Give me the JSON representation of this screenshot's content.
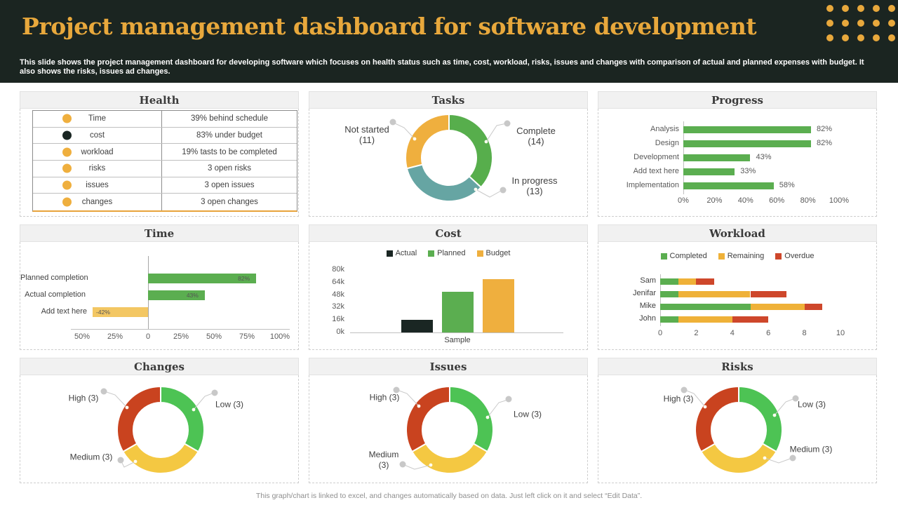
{
  "header": {
    "title": "Project management dashboard for software development",
    "subtitle": "This slide shows the project management dashboard for developing software which focuses on health status such as time, cost, workload, risks, issues and changes with comparison of actual and planned expenses with budget. It also shows the risks, issues ad changes.",
    "accent_color": "#E8A83C",
    "background_color": "#1B2521"
  },
  "footer": {
    "note": "This graph/chart is linked to excel, and changes automatically based on data. Just left click on it and select “Edit Data”."
  },
  "panels": [
    {
      "id": "health",
      "title": "Health"
    },
    {
      "id": "tasks",
      "title": "Tasks"
    },
    {
      "id": "progress",
      "title": "Progress"
    },
    {
      "id": "time",
      "title": "Time"
    },
    {
      "id": "cost",
      "title": "Cost"
    },
    {
      "id": "workload",
      "title": "Workload"
    },
    {
      "id": "changes",
      "title": "Changes"
    },
    {
      "id": "issues",
      "title": "Issues"
    },
    {
      "id": "risks",
      "title": "Risks"
    }
  ],
  "chart_data": [
    {
      "id": "health",
      "type": "table",
      "rows": [
        {
          "dot": "#EFAF3E",
          "label": "Time",
          "value": "39% behind schedule"
        },
        {
          "dot": "#1A2623",
          "label": "cost",
          "value": "83% under budget"
        },
        {
          "dot": "#EFAF3E",
          "label": "workload",
          "value": "19% tasts to be completed"
        },
        {
          "dot": "#EFAF3E",
          "label": "risks",
          "value": "3 open risks"
        },
        {
          "dot": "#EFAF3E",
          "label": "issues",
          "value": "3 open issues"
        },
        {
          "dot": "#EFAF3E",
          "label": "changes",
          "value": "3 open changes"
        }
      ]
    },
    {
      "id": "tasks",
      "type": "pie",
      "donut": true,
      "labels": [
        "Complete",
        "In progress",
        "Not started"
      ],
      "values": [
        14,
        13,
        11
      ],
      "colors": [
        "#57AE4C",
        "#66A5A3",
        "#EFAF3E"
      ],
      "display_labels": [
        "Complete\n(14)",
        "In progress\n(13)",
        "Not started\n(11)"
      ]
    },
    {
      "id": "progress",
      "type": "bar",
      "orientation": "horizontal",
      "categories": [
        "Analysis",
        "Design",
        "Development",
        "Add text here",
        "Implementation"
      ],
      "values": [
        82,
        82,
        43,
        33,
        58
      ],
      "value_labels": [
        "82%",
        "82%",
        "43%",
        "33%",
        "58%"
      ],
      "xticks": [
        "0%",
        "20%",
        "40%",
        "60%",
        "80%",
        "100%"
      ],
      "xlim": [
        0,
        100
      ],
      "color": "#5BAE50"
    },
    {
      "id": "time",
      "type": "bar",
      "orientation": "horizontal-diverging",
      "categories": [
        "Planned completion",
        "Actual completion",
        "Add text here"
      ],
      "values": [
        82,
        43,
        -42
      ],
      "value_labels": [
        "82%",
        "43%",
        "-42%"
      ],
      "colors": [
        "#5BAE50",
        "#5BAE50",
        "#F3C763"
      ],
      "xticks": [
        "50%",
        "25%",
        "0",
        "25%",
        "50%",
        "75%",
        "100%"
      ],
      "xtick_values": [
        -50,
        -25,
        0,
        25,
        50,
        75,
        100
      ],
      "xlim": [
        -50,
        100
      ]
    },
    {
      "id": "cost",
      "type": "bar",
      "orientation": "vertical",
      "categories": [
        "Sample"
      ],
      "xlabel": "Sample",
      "series": [
        {
          "name": "Actual",
          "value": 16000,
          "color": "#1A2623"
        },
        {
          "name": "Planned",
          "value": 52000,
          "color": "#5BAE50"
        },
        {
          "name": "Budget",
          "value": 68000,
          "color": "#EFAF3E"
        }
      ],
      "yticks": [
        "0k",
        "16k",
        "32k",
        "48k",
        "64k",
        "80k"
      ],
      "ytick_values": [
        0,
        16000,
        32000,
        48000,
        64000,
        80000
      ],
      "ylim": [
        0,
        80000
      ]
    },
    {
      "id": "workload",
      "type": "bar",
      "orientation": "horizontal-stacked",
      "categories": [
        "Sam",
        "Jenifar",
        "Mike",
        "John"
      ],
      "series": [
        {
          "name": "Completed",
          "color": "#5BAE50",
          "values": [
            1,
            1,
            5,
            1
          ]
        },
        {
          "name": "Remaining",
          "color": "#EFB138",
          "values": [
            1,
            4,
            3,
            3
          ]
        },
        {
          "name": "Overdue",
          "color": "#CE472B",
          "values": [
            1,
            2,
            1,
            2
          ]
        }
      ],
      "xticks": [
        "0",
        "2",
        "4",
        "6",
        "8",
        "10"
      ],
      "xtick_values": [
        0,
        2,
        4,
        6,
        8,
        10
      ],
      "xlim": [
        0,
        10
      ]
    },
    {
      "id": "changes",
      "type": "pie",
      "donut": true,
      "labels": [
        "Low",
        "Medium",
        "High"
      ],
      "values": [
        3,
        3,
        3
      ],
      "colors": [
        "#4DC354",
        "#F4C842",
        "#C9431F"
      ],
      "display_labels": [
        "Low (3)",
        "Medium (3)",
        "High (3)"
      ]
    },
    {
      "id": "issues",
      "type": "pie",
      "donut": true,
      "labels": [
        "Low",
        "Medium",
        "High"
      ],
      "values": [
        3,
        3,
        3
      ],
      "colors": [
        "#4DC354",
        "#F4C842",
        "#C9431F"
      ],
      "display_labels": [
        "Low (3)",
        "Medium\n(3)",
        "High (3)"
      ]
    },
    {
      "id": "risks",
      "type": "pie",
      "donut": true,
      "labels": [
        "Low",
        "Medium",
        "High"
      ],
      "values": [
        3,
        3,
        3
      ],
      "colors": [
        "#4DC354",
        "#F4C842",
        "#C9431F"
      ],
      "display_labels": [
        "Low (3)",
        "Medium (3)",
        "High (3)"
      ]
    }
  ]
}
